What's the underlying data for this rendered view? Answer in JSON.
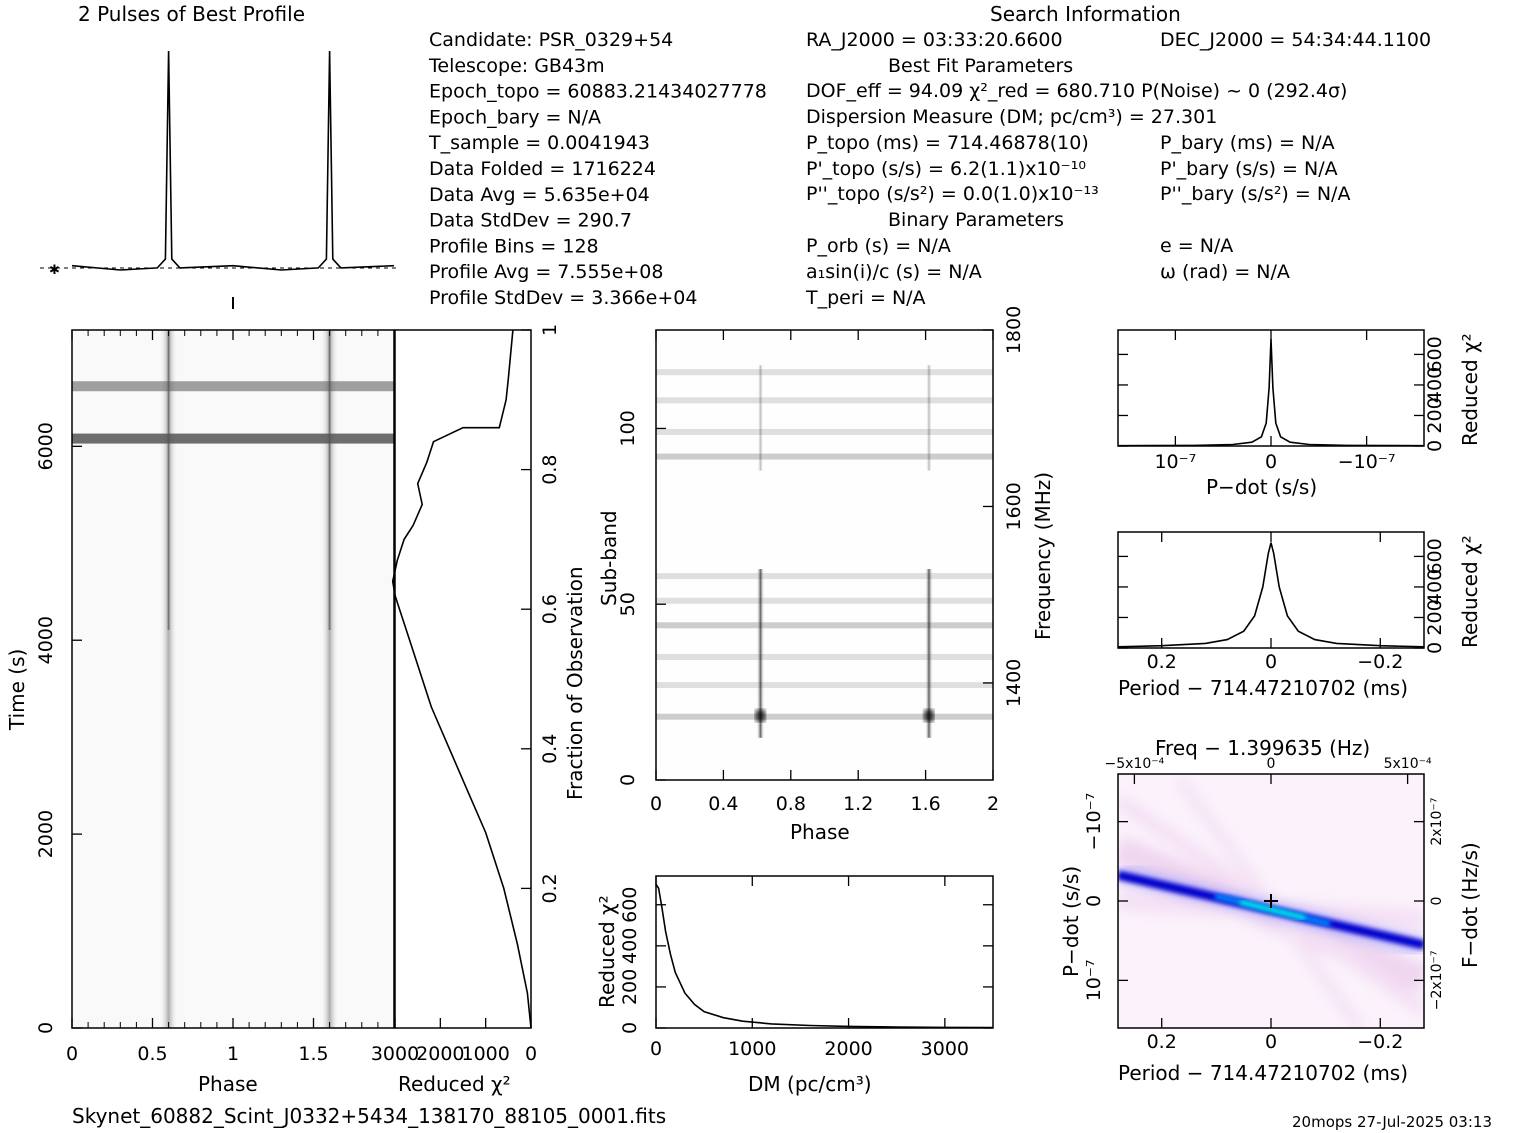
{
  "header": {
    "profile_title": "2 Pulses of Best Profile",
    "search_title": "Search Information",
    "best_fit_title": "Best Fit Parameters",
    "binary_title": "Binary Parameters"
  },
  "info": {
    "col1": [
      "Candidate:  PSR_0329+54",
      "Telescope:  GB43m",
      "Epoch_topo = 60883.21434027778",
      "Epoch_bary = N/A",
      "T_sample       =  0.0041943",
      "Data Folded    =  1716224",
      "Data Avg       =  5.635e+04",
      "Data StdDev    =  290.7",
      "Profile Bins   =  128",
      "Profile Avg    =  7.555e+08",
      "Profile StdDev =  3.366e+04"
    ],
    "ra": "RA_J2000 = 03:33:20.6600",
    "dec": "DEC_J2000 = 54:34:44.1100",
    "dof": "DOF_eff = 94.09  χ²_red = 680.710  P(Noise) ~ 0   (292.4σ)",
    "dm": "Dispersion Measure (DM; pc/cm³) = 27.301",
    "ptopo": "P_topo (ms) =  714.46878(10)",
    "pbary": "P_bary (ms) = N/A",
    "pdtopo": "P'_topo (s/s) =  6.2(1.1)x10⁻¹⁰",
    "pdbary": "P'_bary (s/s) = N/A",
    "pddtopo": "P''_topo (s/s²) = 0.0(1.0)x10⁻¹³",
    "pddbary": "P''_bary (s/s²) = N/A",
    "porb": "P_orb (s) = N/A",
    "asini": "a₁sin(i)/c (s) = N/A",
    "tperi": "T_peri = N/A",
    "ecc": "e = N/A",
    "omega": "ω (rad) = N/A"
  },
  "footer": {
    "filename": "Skynet_60882_Scint_J0332+5434_138170_88105_0001.fits",
    "stamp": "20mops 27-Jul-2025 03:13"
  },
  "colors": {
    "ink": "#000000",
    "band": "#555555",
    "ppdot_core": "#0000cc",
    "ppdot_peak": "#00ffdd",
    "ppdot_halo": "#f3d8f3"
  },
  "chart_data": [
    {
      "id": "profile",
      "type": "line",
      "title": "2 Pulses of Best Profile",
      "x": [
        0,
        0.3,
        0.53,
        0.58,
        0.6,
        0.62,
        0.67,
        1.0,
        1.3,
        1.53,
        1.58,
        1.6,
        1.62,
        1.67,
        2.0
      ],
      "y": [
        0.02,
        0.0,
        0.01,
        0.05,
        1.0,
        0.05,
        0.01,
        0.02,
        0.0,
        0.01,
        0.05,
        1.0,
        0.05,
        0.01,
        0.02
      ],
      "xlim": [
        0,
        2
      ],
      "ylim": [
        -0.05,
        1.05
      ]
    },
    {
      "id": "time_phase",
      "type": "heatmap",
      "xlabel": "Phase",
      "ylabel": "Time (s)",
      "xticks": [
        "0",
        "0.5",
        "1",
        "1.5"
      ],
      "xtick_values": [
        0,
        0.5,
        1,
        1.5
      ],
      "yticks": [
        "0",
        "2000",
        "4000",
        "6000"
      ],
      "ytick_values": [
        0,
        2000,
        4000,
        6000
      ],
      "xlim": [
        0,
        2
      ],
      "ylim": [
        0,
        7200
      ],
      "pulse_phases": [
        0.6,
        1.6
      ],
      "bright_rows_s": [
        6080,
        6620
      ]
    },
    {
      "id": "chi2_time",
      "type": "line",
      "xlabel": "Reduced χ²",
      "ylabel": "Fraction of Observation",
      "xticks": [
        "3000",
        "2000",
        "1000",
        "0"
      ],
      "xtick_values": [
        3000,
        2000,
        1000,
        0
      ],
      "yticks": [
        "0.2",
        "0.4",
        "0.6",
        "0.8",
        "1"
      ],
      "ytick_values": [
        0.2,
        0.4,
        0.6,
        0.8,
        1
      ],
      "xlim": [
        3000,
        0
      ],
      "ylim": [
        0,
        1
      ],
      "x": [
        0,
        80,
        300,
        600,
        1000,
        1400,
        1800,
        2200,
        2500,
        2800,
        2900,
        3000,
        3050,
        2950,
        2800,
        2600,
        2400,
        2500,
        2300,
        2150,
        1500,
        700,
        550,
        500,
        400
      ],
      "y": [
        0,
        0.05,
        0.12,
        0.2,
        0.28,
        0.34,
        0.4,
        0.46,
        0.52,
        0.58,
        0.6,
        0.62,
        0.64,
        0.67,
        0.7,
        0.72,
        0.75,
        0.78,
        0.81,
        0.84,
        0.86,
        0.86,
        0.9,
        0.93,
        1.0
      ]
    },
    {
      "id": "subband_phase",
      "type": "heatmap",
      "xlabel": "Phase",
      "ylabel": "Sub-band",
      "y2label": "Frequency (MHz)",
      "xticks": [
        "0",
        "0.4",
        "0.8",
        "1.2",
        "1.6",
        "2"
      ],
      "xtick_values": [
        0,
        0.4,
        0.8,
        1.2,
        1.6,
        2
      ],
      "yticks": [
        "0",
        "50",
        "100"
      ],
      "ytick_values": [
        0,
        50,
        100
      ],
      "y2ticks": [
        "1400",
        "1600",
        "1800"
      ],
      "y2tick_values": [
        1400,
        1600,
        1800
      ],
      "xlim": [
        0,
        2
      ],
      "ylim": [
        0,
        128
      ],
      "y2lim": [
        1290,
        1800
      ],
      "pulse_phases": [
        0.62,
        1.62
      ],
      "band_rows": [
        18,
        27,
        35,
        44,
        51,
        58,
        92,
        99,
        108,
        116
      ]
    },
    {
      "id": "dm_chi2",
      "type": "line",
      "xlabel": "DM (pc/cm³)",
      "ylabel": "Reduced χ²",
      "xticks": [
        "0",
        "1000",
        "2000",
        "3000"
      ],
      "xtick_values": [
        0,
        1000,
        2000,
        3000
      ],
      "yticks": [
        "0",
        "200",
        "400",
        "600"
      ],
      "ytick_values": [
        0,
        200,
        400,
        600
      ],
      "xlim": [
        0,
        3500
      ],
      "ylim": [
        0,
        740
      ],
      "x": [
        0,
        27,
        60,
        100,
        150,
        200,
        300,
        400,
        500,
        700,
        900,
        1200,
        1600,
        2000,
        2500,
        3000,
        3500
      ],
      "y": [
        700,
        680,
        590,
        470,
        360,
        270,
        170,
        115,
        80,
        50,
        33,
        20,
        12,
        8,
        5,
        3,
        2
      ]
    },
    {
      "id": "pdot_chi2",
      "type": "line",
      "xlabel": "P−dot (s/s)",
      "ylabel": "Reduced χ²",
      "xticks": [
        "10⁻⁷",
        "0",
        "−10⁻⁷"
      ],
      "xtick_values": [
        1e-07,
        0,
        -1e-07
      ],
      "yticks": [
        "0",
        "200",
        "400",
        "600"
      ],
      "ytick_values": [
        0,
        200,
        400,
        600
      ],
      "xlim": [
        1.6e-07,
        -1.6e-07
      ],
      "ylim": [
        0,
        760
      ],
      "x": [
        1.6e-07,
        8e-08,
        4e-08,
        2e-08,
        1e-08,
        5e-09,
        2e-09,
        0,
        -2e-09,
        -5e-09,
        -1e-08,
        -2e-08,
        -4e-08,
        -8e-08,
        -1.6e-07
      ],
      "y": [
        2,
        4,
        10,
        25,
        60,
        150,
        380,
        700,
        380,
        150,
        60,
        25,
        10,
        4,
        2
      ]
    },
    {
      "id": "period_chi2",
      "type": "line",
      "xlabel": "Period − 714.47210702 (ms)",
      "ylabel": "Reduced χ²",
      "xticks": [
        "0.2",
        "0",
        "−0.2"
      ],
      "xtick_values": [
        0.2,
        0,
        -0.2
      ],
      "yticks": [
        "0",
        "200",
        "400",
        "600"
      ],
      "ytick_values": [
        0,
        200,
        400,
        600
      ],
      "xlim": [
        0.28,
        -0.28
      ],
      "ylim": [
        0,
        760
      ],
      "x": [
        0.28,
        0.2,
        0.12,
        0.08,
        0.05,
        0.03,
        0.015,
        0.005,
        0,
        -0.005,
        -0.015,
        -0.03,
        -0.05,
        -0.08,
        -0.12,
        -0.2,
        -0.28
      ],
      "y": [
        8,
        15,
        30,
        55,
        110,
        210,
        400,
        620,
        690,
        620,
        400,
        210,
        110,
        55,
        30,
        15,
        8
      ]
    },
    {
      "id": "p_pdot",
      "type": "heatmap",
      "title": "Freq − 1.399635 (Hz)",
      "xlabel": "Period − 714.47210702 (ms)",
      "ylabel": "P−dot (s/s)",
      "y2label": "F−dot (Hz/s)",
      "xticks": [
        "0.2",
        "0",
        "−0.2"
      ],
      "xtick_values": [
        0.2,
        0,
        -0.2
      ],
      "x2ticks": [
        "−5x10⁻⁴",
        "0",
        "5x10⁻⁴"
      ],
      "x2tick_values": [
        -0.0005,
        0,
        0.0005
      ],
      "yticks": [
        "−10⁻⁷",
        "0",
        "10⁻⁷"
      ],
      "ytick_values": [
        -1e-07,
        0,
        1e-07
      ],
      "y2ticks": [
        "2x10⁻⁷",
        "0",
        "−2x10⁻⁷"
      ],
      "y2tick_values": [
        2e-07,
        0,
        -2e-07
      ],
      "xlim": [
        0.28,
        -0.28
      ],
      "ylim": [
        1.6e-07,
        -1.6e-07
      ],
      "best": [
        0,
        0
      ]
    }
  ]
}
